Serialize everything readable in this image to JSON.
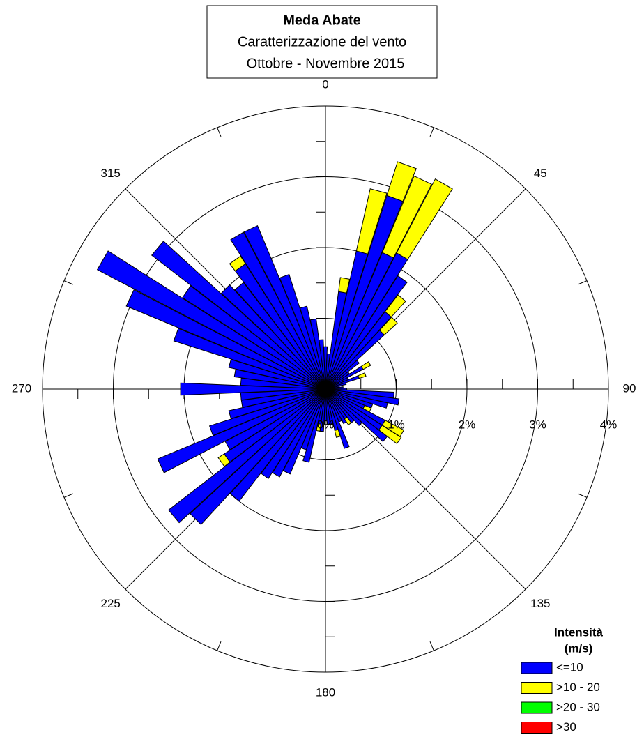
{
  "chart_data": {
    "type": "windrose",
    "title": "Meda Abate",
    "subtitle": [
      "Caratterizzazione del vento",
      "Ottobre - Novembre 2015"
    ],
    "x": [
      0,
      5,
      10,
      15,
      20,
      25,
      30,
      35,
      40,
      45,
      50,
      55,
      60,
      65,
      70,
      75,
      80,
      85,
      90,
      95,
      100,
      105,
      110,
      115,
      120,
      125,
      130,
      135,
      140,
      145,
      150,
      155,
      160,
      165,
      170,
      175,
      180,
      185,
      190,
      195,
      200,
      205,
      210,
      215,
      220,
      225,
      230,
      235,
      240,
      245,
      250,
      255,
      260,
      265,
      270,
      275,
      280,
      285,
      290,
      295,
      300,
      305,
      310,
      315,
      320,
      325,
      330,
      335,
      340,
      345,
      350,
      355
    ],
    "series": [
      {
        "name": "<=10",
        "color": "#0000ff",
        "values": [
          0.6,
          0.5,
          1.39,
          2.0,
          2.87,
          2.09,
          2.17,
          1.9,
          1.38,
          1.13,
          0.6,
          0.4,
          0.6,
          0.35,
          0.5,
          0.3,
          0.2,
          0.25,
          0.3,
          0.97,
          1.05,
          0.9,
          0.7,
          0.6,
          0.95,
          0.95,
          1.1,
          0.7,
          0.6,
          0.5,
          0.55,
          0.5,
          0.88,
          0.6,
          0.5,
          0.5,
          0.45,
          0.6,
          0.5,
          1.06,
          0.9,
          1.3,
          1.4,
          1.5,
          2.0,
          2.6,
          2.8,
          1.7,
          1.6,
          2.57,
          1.72,
          1.4,
          1.2,
          1.2,
          2.05,
          1.2,
          1.3,
          1.4,
          2.25,
          3.05,
          3.64,
          2.4,
          3.1,
          2.0,
          1.9,
          2.1,
          2.5,
          2.5,
          1.7,
          1.2,
          1.0,
          0.7
        ]
      },
      {
        "name": ">10 - 20",
        "color": "#ffff00",
        "values": [
          0,
          0,
          0.2,
          0.9,
          0.5,
          1.17,
          1.18,
          0,
          0.3,
          0.25,
          0,
          0,
          0.12,
          0,
          0.1,
          0,
          0,
          0,
          0,
          0,
          0,
          0,
          0,
          0.1,
          0.3,
          0.32,
          0,
          0,
          0,
          0.1,
          0,
          0,
          0,
          0.1,
          0,
          0,
          0,
          0,
          0.1,
          0,
          0,
          0,
          0,
          0,
          0,
          0,
          0,
          0.1,
          0,
          0,
          0,
          0,
          0,
          0,
          0,
          0,
          0,
          0,
          0,
          0,
          0,
          0,
          0,
          0,
          0,
          0.13,
          0,
          0,
          0,
          0,
          0,
          0
        ]
      },
      {
        "name": ">20 - 30",
        "color": "#00ff00",
        "values": [
          0,
          0,
          0,
          0,
          0,
          0,
          0,
          0,
          0,
          0,
          0,
          0,
          0,
          0,
          0,
          0,
          0,
          0,
          0,
          0,
          0,
          0,
          0,
          0,
          0,
          0,
          0,
          0,
          0,
          0,
          0,
          0,
          0,
          0,
          0,
          0,
          0,
          0,
          0,
          0,
          0,
          0,
          0,
          0,
          0,
          0,
          0,
          0,
          0,
          0,
          0,
          0,
          0,
          0,
          0,
          0,
          0,
          0,
          0,
          0,
          0,
          0,
          0,
          0,
          0,
          0,
          0,
          0,
          0,
          0,
          0,
          0
        ]
      },
      {
        "name": ">30",
        "color": "#ff0000",
        "values": [
          0,
          0,
          0,
          0,
          0,
          0,
          0,
          0,
          0,
          0,
          0,
          0,
          0,
          0,
          0,
          0,
          0,
          0,
          0,
          0,
          0,
          0,
          0,
          0,
          0,
          0,
          0,
          0,
          0,
          0,
          0,
          0,
          0,
          0,
          0,
          0,
          0,
          0,
          0,
          0,
          0,
          0,
          0,
          0,
          0,
          0,
          0,
          0,
          0,
          0,
          0,
          0,
          0,
          0,
          0,
          0,
          0,
          0,
          0,
          0,
          0,
          0,
          0,
          0,
          0,
          0,
          0,
          0,
          0,
          0,
          0,
          0
        ]
      }
    ],
    "rlim": [
      0,
      4
    ],
    "rticks": [
      {
        "value": 0,
        "label": "0%"
      },
      {
        "value": 1,
        "label": "1%"
      },
      {
        "value": 2,
        "label": "2%"
      },
      {
        "value": 3,
        "label": "3%"
      },
      {
        "value": 4,
        "label": "4%"
      }
    ],
    "angle_ticks": [
      0,
      45,
      90,
      135,
      180,
      225,
      270,
      315
    ],
    "legend_title": [
      "Intensità",
      "(m/s)"
    ],
    "legend": "lower right"
  }
}
